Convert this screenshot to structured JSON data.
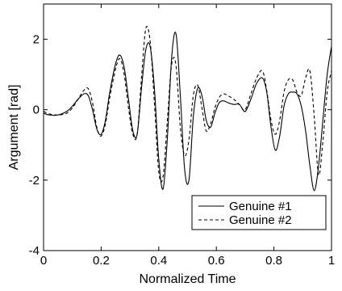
{
  "chart_data": {
    "type": "line",
    "title": "",
    "xlabel": "Normalized Time",
    "ylabel": "Argument [rad]",
    "xlim": [
      0,
      1
    ],
    "ylim": [
      -4,
      3
    ],
    "xticks": [
      0,
      0.2,
      0.4,
      0.6,
      0.8,
      1
    ],
    "xtick_labels": [
      "0",
      "0.2",
      "0.4",
      "0.6",
      "0.8",
      "1"
    ],
    "yticks": [
      -4,
      -2,
      0,
      2
    ],
    "ytick_labels": [
      "-4",
      "-2",
      "0",
      "2"
    ],
    "grid": false,
    "legend_position": "bottom-right",
    "series": [
      {
        "name": "Genuine #1",
        "style": "solid",
        "color": "#000000",
        "x": [
          0,
          0.02,
          0.05,
          0.08,
          0.1,
          0.12,
          0.14,
          0.155,
          0.17,
          0.185,
          0.2,
          0.215,
          0.23,
          0.25,
          0.265,
          0.28,
          0.295,
          0.31,
          0.325,
          0.34,
          0.355,
          0.37,
          0.385,
          0.4,
          0.415,
          0.43,
          0.445,
          0.46,
          0.475,
          0.49,
          0.505,
          0.52,
          0.535,
          0.55,
          0.565,
          0.58,
          0.595,
          0.61,
          0.625,
          0.64,
          0.66,
          0.68,
          0.7,
          0.72,
          0.74,
          0.76,
          0.775,
          0.79,
          0.805,
          0.82,
          0.835,
          0.85,
          0.865,
          0.88,
          0.895,
          0.91,
          0.925,
          0.94,
          0.955,
          0.97,
          0.985,
          1.0
        ],
        "values": [
          -0.1,
          -0.15,
          -0.15,
          -0.05,
          0.1,
          0.3,
          0.45,
          0.4,
          0.0,
          -0.55,
          -0.7,
          -0.3,
          0.5,
          1.3,
          1.55,
          1.2,
          0.3,
          -0.6,
          -0.7,
          0.6,
          1.7,
          1.8,
          0.6,
          -1.4,
          -2.25,
          -0.8,
          1.5,
          2.15,
          0.4,
          -1.7,
          -2.0,
          -0.2,
          0.6,
          0.4,
          -0.3,
          -0.5,
          -0.1,
          0.2,
          0.25,
          0.2,
          0.15,
          0.15,
          -0.05,
          0.3,
          0.75,
          0.9,
          0.5,
          -0.5,
          -1.15,
          -0.75,
          0.1,
          0.45,
          0.5,
          0.45,
          0.1,
          -0.6,
          -1.6,
          -2.3,
          -1.6,
          -0.3,
          1.0,
          1.8
        ]
      },
      {
        "name": "Genuine #2",
        "style": "dashed",
        "color": "#000000",
        "x": [
          0,
          0.02,
          0.05,
          0.08,
          0.1,
          0.12,
          0.14,
          0.155,
          0.17,
          0.185,
          0.2,
          0.215,
          0.23,
          0.25,
          0.265,
          0.28,
          0.295,
          0.31,
          0.325,
          0.34,
          0.355,
          0.37,
          0.385,
          0.4,
          0.415,
          0.43,
          0.445,
          0.46,
          0.475,
          0.49,
          0.505,
          0.52,
          0.535,
          0.55,
          0.565,
          0.58,
          0.595,
          0.61,
          0.625,
          0.64,
          0.66,
          0.68,
          0.7,
          0.72,
          0.74,
          0.76,
          0.775,
          0.79,
          0.805,
          0.82,
          0.835,
          0.85,
          0.865,
          0.88,
          0.895,
          0.91,
          0.925,
          0.94,
          0.955,
          0.97,
          0.985,
          1.0
        ],
        "values": [
          -0.05,
          -0.12,
          -0.15,
          -0.1,
          0.05,
          0.3,
          0.55,
          0.6,
          0.2,
          -0.5,
          -0.75,
          -0.4,
          0.35,
          1.15,
          1.45,
          1.0,
          0.05,
          -0.7,
          -0.7,
          0.9,
          2.3,
          1.95,
          0.2,
          -1.75,
          -1.9,
          -0.3,
          1.3,
          1.25,
          -0.5,
          -1.3,
          -0.85,
          0.4,
          0.7,
          0.05,
          -0.6,
          -0.4,
          0.05,
          0.35,
          0.45,
          0.4,
          0.3,
          0.15,
          0.0,
          0.45,
          0.9,
          1.1,
          0.55,
          -0.3,
          -0.7,
          -0.3,
          0.5,
          0.85,
          0.85,
          0.5,
          0.4,
          0.9,
          1.1,
          -0.2,
          -1.85,
          -0.9,
          0.5,
          1.1
        ]
      }
    ]
  }
}
